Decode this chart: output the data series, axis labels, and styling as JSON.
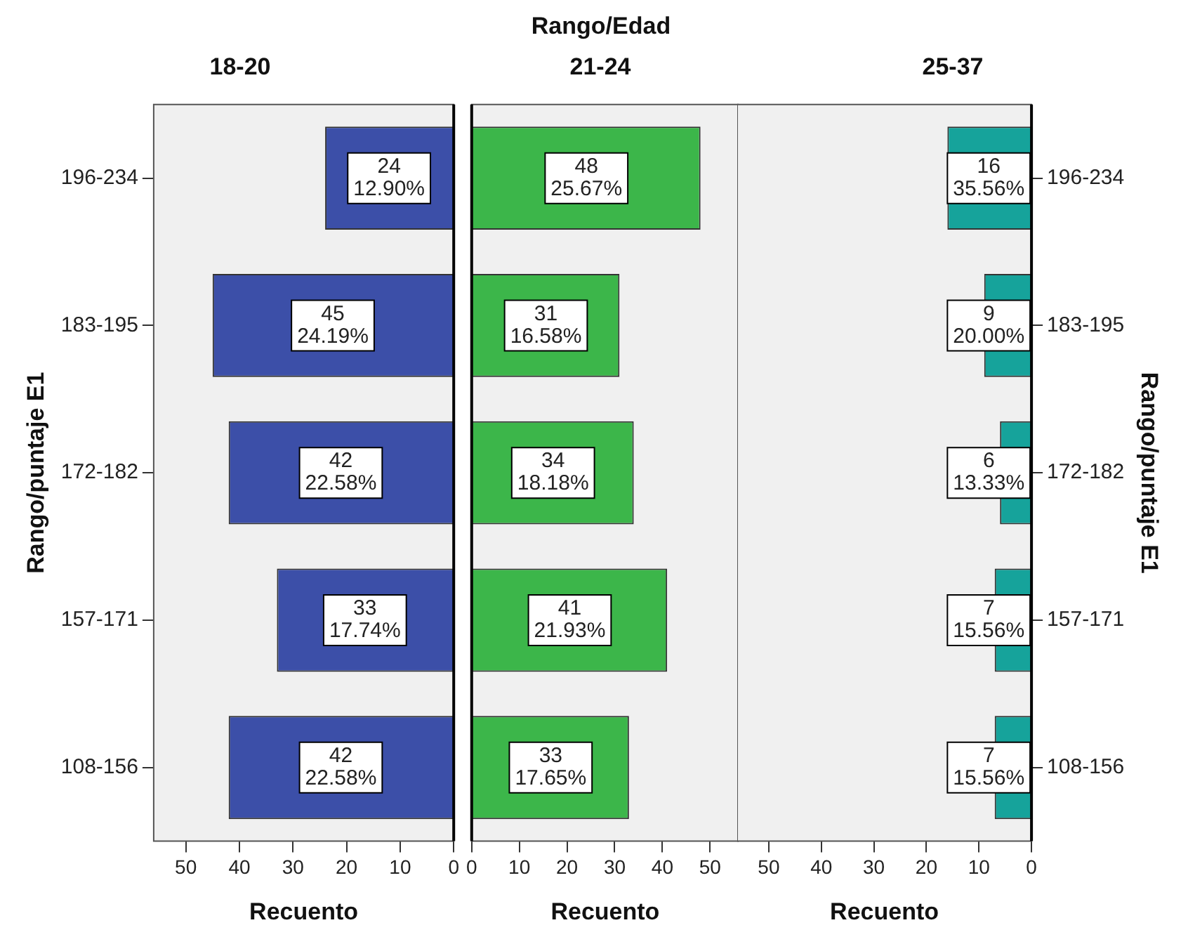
{
  "chart_data": [
    {
      "type": "bar",
      "orientation": "horizontal",
      "subtitle": "18-20",
      "xlabel": "Recuento",
      "ylabel": "Rango/puntaje E1",
      "categories": [
        "196-234",
        "183-195",
        "172-182",
        "157-171",
        "108-156"
      ],
      "values": [
        24,
        45,
        42,
        33,
        42
      ],
      "color": "#3c4fa8",
      "value_labels": [
        "24\n12.90%",
        "45\n24.19%",
        "42\n22.58%",
        "33\n17.74%",
        "42\n22.58%"
      ],
      "xlim": [
        56,
        0
      ],
      "xticks": [
        50,
        40,
        30,
        20,
        10,
        0
      ]
    },
    {
      "type": "bar",
      "orientation": "horizontal",
      "title": "Rango/Edad",
      "subtitle": "21-24",
      "xlabel": "Recuento",
      "categories": [
        null,
        null,
        null,
        null,
        null
      ],
      "values": [
        48,
        31,
        34,
        41,
        33
      ],
      "color": "#3cb64a",
      "value_labels": [
        "48\n25.67%",
        "31\n16.58%",
        "34\n18.18%",
        "41\n21.93%",
        "33\n17.65%"
      ],
      "xlim": [
        0,
        56
      ],
      "xticks": [
        0,
        10,
        20,
        30,
        40,
        50
      ],
      "tick_labels": "x"
    },
    {
      "type": "bar",
      "orientation": "horizontal",
      "subtitle": "25-37",
      "xlabel": "Recuento",
      "y2label": "Rango/puntaje E1",
      "categories": [
        "196-234",
        "183-195",
        "172-182",
        "157-171",
        "108-156"
      ],
      "values": [
        16,
        9,
        6,
        7,
        7
      ],
      "color": "#16a39b",
      "value_labels": [
        "16\n35.56%",
        "9\n20.00%",
        "6\n13.33%",
        "7\n15.56%",
        "7\n15.56%"
      ],
      "xlim": [
        56,
        0
      ],
      "xticks": [
        50,
        40,
        30,
        20,
        10,
        0
      ]
    }
  ]
}
